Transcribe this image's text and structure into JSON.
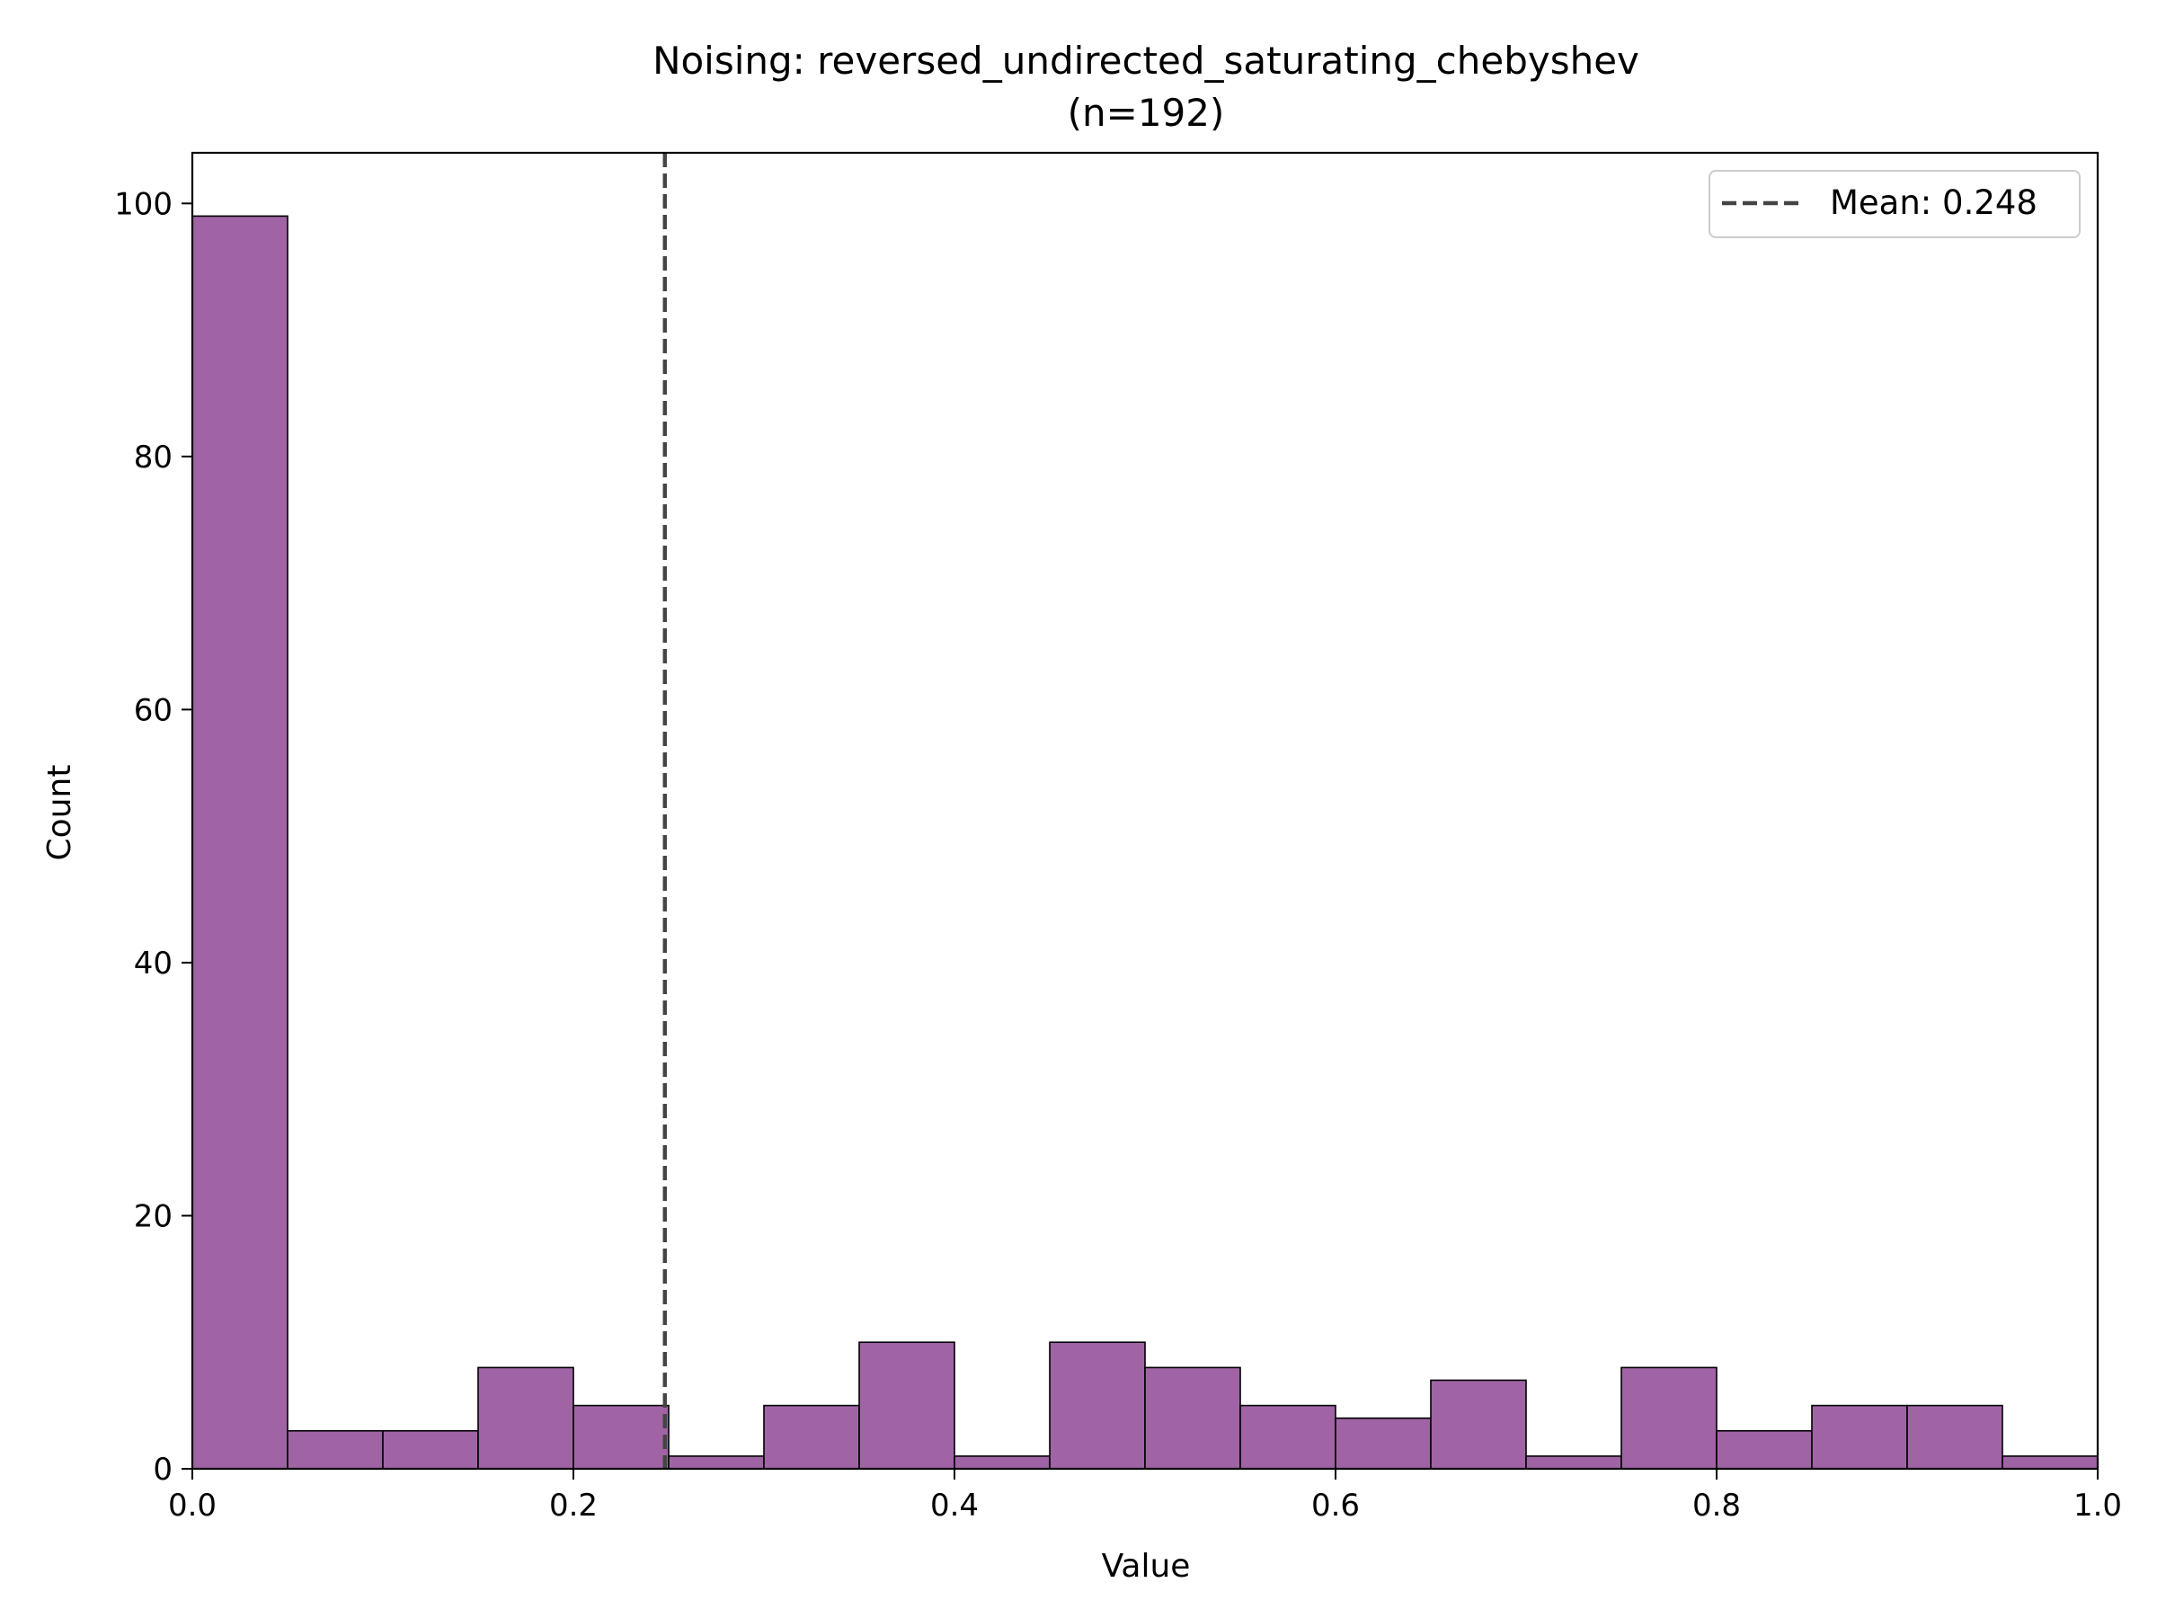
{
  "chart_data": {
    "type": "bar",
    "title": "Noising: reversed_undirected_saturating_chebyshev",
    "subtitle": "(n=192)",
    "xlabel": "Value",
    "ylabel": "Count",
    "xlim": [
      0.0,
      1.0
    ],
    "ylim": [
      0,
      104
    ],
    "xticks": [
      "0.0",
      "0.2",
      "0.4",
      "0.6",
      "0.8",
      "1.0"
    ],
    "yticks": [
      "0",
      "20",
      "40",
      "60",
      "80",
      "100"
    ],
    "bin_edges": [
      0.0,
      0.05,
      0.1,
      0.15,
      0.2,
      0.25,
      0.3,
      0.35,
      0.4,
      0.45,
      0.5,
      0.55,
      0.6,
      0.65,
      0.7,
      0.75,
      0.8,
      0.85,
      0.9,
      0.95,
      1.0
    ],
    "values": [
      99,
      3,
      3,
      8,
      5,
      1,
      5,
      10,
      1,
      10,
      8,
      5,
      4,
      7,
      1,
      8,
      3,
      5,
      5,
      1
    ],
    "bar_color": "#a064a5",
    "edge_color": "#000000",
    "mean": 0.248,
    "mean_line_color": "#444444",
    "legend": {
      "label": "Mean: 0.248",
      "position": "top-right"
    },
    "grid": false
  }
}
